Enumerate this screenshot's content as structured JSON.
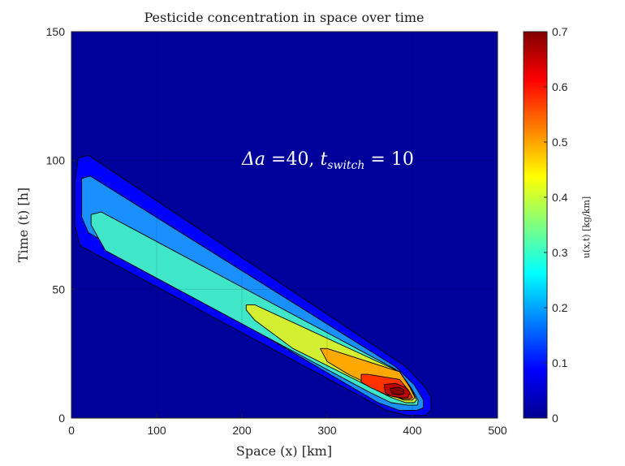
{
  "chart_data": {
    "type": "heatmap",
    "subtype": "filled-contour",
    "title": "Pesticide concentration in space over time",
    "xlabel": "Space (x) [km]",
    "ylabel": "Time (t) [h]",
    "xlim": [
      0,
      500
    ],
    "ylim": [
      0,
      150
    ],
    "x_ticks": [
      0,
      100,
      200,
      300,
      400,
      500
    ],
    "y_ticks": [
      0,
      50,
      100,
      150
    ],
    "grid": true,
    "colormap": "jet",
    "colorbar": {
      "label": "u(x,t) [kg/km]",
      "range": [
        0,
        0.7
      ],
      "ticks": [
        0,
        0.1,
        0.2,
        0.3,
        0.4,
        0.5,
        0.6,
        0.7
      ]
    },
    "annotation": {
      "delta_symbol": "Δa",
      "delta_value": " =40, ",
      "t_symbol": "t",
      "t_subscript": "switch",
      "t_value": " = 10"
    },
    "contour_levels": [
      {
        "level": 0.0,
        "color": "#00009b",
        "polygon": [
          [
            0,
            0
          ],
          [
            500,
            0
          ],
          [
            500,
            150
          ],
          [
            0,
            150
          ]
        ]
      },
      {
        "level": 0.1,
        "color": "#0000ff",
        "polygon": [
          [
            8,
            101
          ],
          [
            20,
            102
          ],
          [
            392,
            20
          ],
          [
            415,
            12
          ],
          [
            422,
            8
          ],
          [
            422,
            3
          ],
          [
            415,
            1
          ],
          [
            395,
            1
          ],
          [
            370,
            3
          ],
          [
            10,
            67
          ],
          [
            4,
            75
          ],
          [
            4,
            92
          ]
        ]
      },
      {
        "level": 0.2,
        "color": "#1a90ff",
        "polygon": [
          [
            12,
            93
          ],
          [
            22,
            94
          ],
          [
            380,
            20
          ],
          [
            402,
            13
          ],
          [
            413,
            7
          ],
          [
            413,
            4
          ],
          [
            405,
            3
          ],
          [
            385,
            3
          ],
          [
            360,
            6
          ],
          [
            20,
            72
          ],
          [
            12,
            78
          ]
        ]
      },
      {
        "level": 0.3,
        "color": "#3fe6c8",
        "polygon": [
          [
            23,
            79
          ],
          [
            35,
            80
          ],
          [
            380,
            19
          ],
          [
            398,
            12
          ],
          [
            407,
            7
          ],
          [
            406,
            5
          ],
          [
            395,
            5
          ],
          [
            375,
            6
          ],
          [
            350,
            10
          ],
          [
            40,
            65
          ],
          [
            23,
            75
          ]
        ]
      },
      {
        "level": 0.4,
        "color": "#d4ef32",
        "polygon": [
          [
            205,
            44
          ],
          [
            215,
            44
          ],
          [
            385,
            18
          ],
          [
            398,
            12
          ],
          [
            405,
            7
          ],
          [
            402,
            6
          ],
          [
            392,
            6
          ],
          [
            375,
            8
          ],
          [
            260,
            27
          ],
          [
            215,
            38
          ],
          [
            205,
            42
          ]
        ]
      },
      {
        "level": 0.5,
        "color": "#ffa800",
        "polygon": [
          [
            292,
            27
          ],
          [
            300,
            27
          ],
          [
            385,
            18
          ],
          [
            397,
            12
          ],
          [
            403,
            8
          ],
          [
            400,
            7
          ],
          [
            390,
            7
          ],
          [
            375,
            9
          ],
          [
            325,
            17
          ],
          [
            300,
            22
          ]
        ]
      },
      {
        "level": 0.6,
        "color": "#ff3300",
        "polygon": [
          [
            340,
            17
          ],
          [
            348,
            17
          ],
          [
            385,
            15
          ],
          [
            395,
            11
          ],
          [
            400,
            8
          ],
          [
            397,
            7.5
          ],
          [
            388,
            7.5
          ],
          [
            370,
            9
          ],
          [
            350,
            12
          ],
          [
            340,
            14
          ]
        ]
      },
      {
        "level": 0.65,
        "color": "#c00000",
        "polygon": [
          [
            367,
            13
          ],
          [
            380,
            13.5
          ],
          [
            392,
            12
          ],
          [
            397,
            10
          ],
          [
            395,
            8
          ],
          [
            388,
            7.8
          ],
          [
            375,
            8.5
          ],
          [
            368,
            10
          ]
        ]
      },
      {
        "level": 0.7,
        "color": "#870000",
        "polygon": [
          [
            374,
            11.5
          ],
          [
            384,
            12
          ],
          [
            390,
            11
          ],
          [
            390,
            9.5
          ],
          [
            384,
            9
          ],
          [
            376,
            9.5
          ]
        ]
      }
    ]
  }
}
